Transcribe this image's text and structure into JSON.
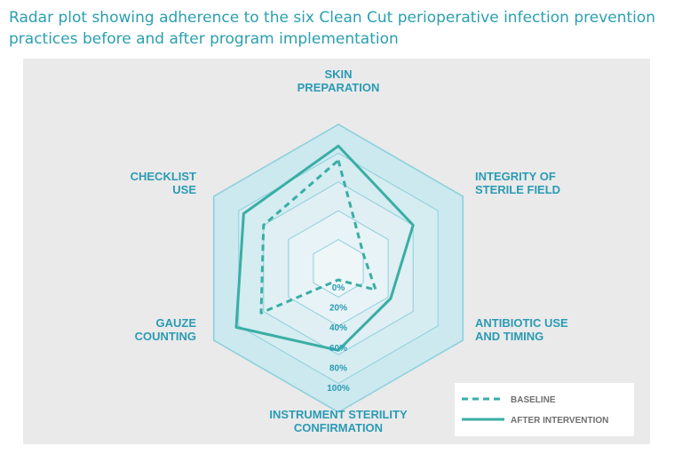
{
  "title": "Radar plot showing adherence to the six Clean Cut perioperative infection prevention practices before and after program implementation",
  "colors": {
    "series_line": "#3aaea4",
    "label_text": "#2a9bb3",
    "ring_stroke": "#8fd0dc",
    "panel_bg": "#eaeaeb"
  },
  "chart_data": {
    "type": "radar",
    "categories": [
      [
        "SKIN",
        "PREPARATION"
      ],
      [
        "INTEGRITY OF",
        "STERILE FIELD"
      ],
      [
        "ANTIBIOTIC USE",
        "AND TIMING"
      ],
      [
        "INSTRUMENT STERILITY",
        "CONFIRMATION"
      ],
      [
        "GAUZE",
        "COUNTING"
      ],
      [
        "CHECKLIST",
        "USE"
      ]
    ],
    "radial_ticks": [
      "0%",
      "20%",
      "40%",
      "60%",
      "80%",
      "100%"
    ],
    "rlim": [
      0,
      100
    ],
    "series": [
      {
        "name": "BASELINE",
        "style": "dashed",
        "values": [
          75,
          20,
          30,
          8,
          62,
          60
        ]
      },
      {
        "name": "AFTER INTERVENTION",
        "style": "solid",
        "values": [
          85,
          60,
          42,
          57,
          82,
          76
        ]
      }
    ],
    "legend_position": "bottom-right"
  }
}
